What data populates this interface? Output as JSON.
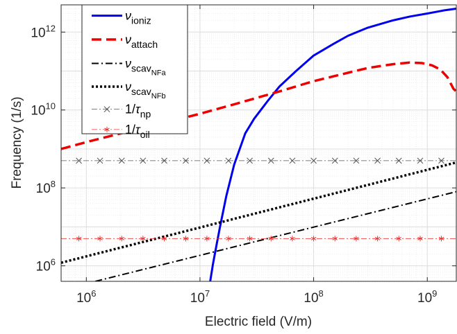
{
  "chart_data": {
    "type": "line",
    "xlabel": "Electric field (V/m)",
    "ylabel": "Frequency (1/s)",
    "xscale": "log",
    "yscale": "log",
    "xlim": [
      600000,
      1800000000
    ],
    "ylim": [
      400000,
      5000000000000
    ],
    "grid": true,
    "legend_position": "top-left",
    "x_ticks": [
      {
        "value": 1000000,
        "base": "10",
        "exp": "6"
      },
      {
        "value": 10000000,
        "base": "10",
        "exp": "7"
      },
      {
        "value": 100000000,
        "base": "10",
        "exp": "8"
      },
      {
        "value": 1000000000,
        "base": "10",
        "exp": "9"
      }
    ],
    "y_ticks": [
      {
        "value": 1000000,
        "base": "10",
        "exp": "6"
      },
      {
        "value": 100000000,
        "base": "10",
        "exp": "8"
      },
      {
        "value": 10000000000,
        "base": "10",
        "exp": "10"
      },
      {
        "value": 1000000000000,
        "base": "10",
        "exp": "12"
      }
    ],
    "series": [
      {
        "name": "ν_ioniz",
        "legend_main": "ν",
        "legend_sub": "ioniz",
        "color": "#0000ee",
        "style": "solid",
        "x": [
          12300000,
          13000000,
          14000000,
          15000000,
          17000000,
          20000000,
          25000000,
          30000000,
          40000000,
          50000000,
          70000000,
          100000000,
          150000000,
          200000000,
          300000000,
          500000000,
          700000000,
          1000000000,
          1400000000,
          1800000000
        ],
        "y": [
          400000,
          1100000,
          3500000,
          10000000,
          60000000,
          400000000,
          2500000000,
          6000000000,
          18000000000,
          40000000000,
          100000000000,
          250000000000,
          500000000000,
          800000000000,
          1300000000000,
          2000000000000,
          2500000000000,
          3000000000000,
          3600000000000,
          4000000000000
        ]
      },
      {
        "name": "ν_attach",
        "legend_main": "ν",
        "legend_sub": "attach",
        "color": "#ee0000",
        "style": "dashed",
        "x": [
          600000,
          1000000,
          2000000,
          5000000,
          10000000,
          20000000,
          50000000,
          100000000,
          200000000,
          300000000,
          500000000,
          700000000,
          900000000,
          1100000000,
          1300000000,
          1500000000,
          1700000000,
          1800000000
        ],
        "y": [
          1000000000,
          1500000000,
          2500000000,
          4800000000,
          8000000000,
          14000000000,
          30000000000,
          55000000000,
          90000000000,
          120000000000,
          150000000000,
          165000000000,
          160000000000,
          140000000000,
          110000000000,
          70000000000,
          35000000000,
          30000000000
        ]
      },
      {
        "name": "ν_scav_NFa",
        "legend_main": "ν",
        "legend_sub": "scav",
        "legend_subsub": "NFa",
        "color": "#000000",
        "style": "dashdot",
        "x": [
          1200000,
          1800000000
        ],
        "y": [
          400000,
          80000000
        ]
      },
      {
        "name": "ν_scav_NFb",
        "legend_main": "ν",
        "legend_sub": "scav",
        "legend_subsub": "NFb",
        "color": "#000000",
        "style": "dotted",
        "x": [
          600000,
          1800000000
        ],
        "y": [
          1200000,
          450000000
        ]
      },
      {
        "name": "1/τ_np",
        "legend_main": "1/τ",
        "legend_sub": "np",
        "color": "#555555",
        "style": "dashdot-thin",
        "marker": "x",
        "x": [
          600000,
          1800000000
        ],
        "y": [
          500000000,
          500000000
        ],
        "marker_x": [
          860000,
          1320000,
          2050000,
          3150000,
          4850000,
          7500000,
          11500000,
          17800000,
          27400000,
          42200000,
          65000000,
          100000000,
          154000000,
          237000000,
          365000000,
          562000000,
          866000000,
          1330000000
        ]
      },
      {
        "name": "1/τ_oil",
        "legend_main": "1/τ",
        "legend_sub": "oil",
        "color": "#ee3333",
        "style": "dashdot-thin",
        "marker": "asterisk",
        "x": [
          600000,
          1800000000
        ],
        "y": [
          5000000,
          5000000
        ],
        "marker_x": [
          860000,
          1320000,
          2050000,
          3150000,
          4850000,
          7500000,
          11500000,
          17800000,
          27400000,
          42200000,
          65000000,
          100000000,
          154000000,
          237000000,
          365000000,
          562000000,
          866000000,
          1330000000
        ]
      }
    ]
  }
}
